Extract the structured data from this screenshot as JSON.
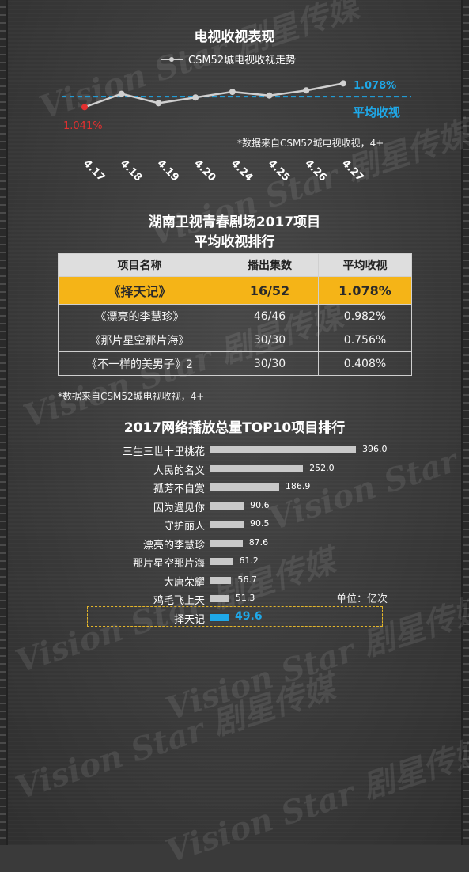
{
  "section1": {
    "title": "电视收视表现",
    "legend": "CSM52城电视收视走势",
    "avg_value": "1.078%",
    "avg_label": "平均收视",
    "first_value": "1.041%",
    "source": "*数据来自CSM52城电视收视，4+"
  },
  "chart_data": [
    {
      "type": "line",
      "title": "电视收视表现",
      "categories": [
        "4.17",
        "4.18",
        "4.19",
        "4.20",
        "4.24",
        "4.25",
        "4.26",
        "4.27"
      ],
      "series": [
        {
          "name": "CSM52城电视收视走势",
          "values": [
            1.041,
            1.088,
            1.055,
            1.075,
            1.095,
            1.082,
            1.1,
            1.125
          ]
        }
      ],
      "average_line": 1.078,
      "ylim": [
        1.0,
        1.14
      ],
      "colors": {
        "line": "#d0d0d0",
        "avg": "#1fa8e8",
        "first": "#e23030"
      }
    },
    {
      "type": "bar",
      "title": "2017网络播放总量TOP10项目排行",
      "categories": [
        "三生三世十里桃花",
        "人民的名义",
        "孤芳不自赏",
        "因为遇见你",
        "守护丽人",
        "漂亮的李慧珍",
        "那片星空那片海",
        "大唐荣耀",
        "鸡毛飞上天",
        "择天记"
      ],
      "values": [
        396.0,
        252.0,
        186.9,
        90.6,
        90.5,
        87.6,
        61.2,
        56.7,
        51.3,
        49.6
      ],
      "value_labels": [
        "396.0",
        "252.0",
        "186.9",
        "90.6",
        "90.5",
        "87.6",
        "61.2",
        "56.7",
        "51.3",
        "49.6"
      ],
      "unit": "单位：亿次",
      "highlight_index": 9,
      "colors": {
        "bar": "#c9c9c9",
        "highlight": "#1fa8e8"
      }
    }
  ],
  "section2": {
    "title_line1": "湖南卫视青春剧场2017项目",
    "title_line2": "平均收视排行",
    "headers": [
      "项目名称",
      "播出集数",
      "平均收视"
    ],
    "rows": [
      [
        "《择天记》",
        "16/52",
        "1.078%"
      ],
      [
        "《漂亮的李慧珍》",
        "46/46",
        "0.982%"
      ],
      [
        "《那片星空那片海》",
        "30/30",
        "0.756%"
      ],
      [
        "《不一样的美男子》2",
        "30/30",
        "0.408%"
      ]
    ],
    "source": "*数据来自CSM52城电视收视，4+"
  },
  "section3": {
    "title": "2017网络播放总量TOP10项目排行",
    "unit": "单位：亿次"
  },
  "watermark": "Vision Star 剧星传媒"
}
